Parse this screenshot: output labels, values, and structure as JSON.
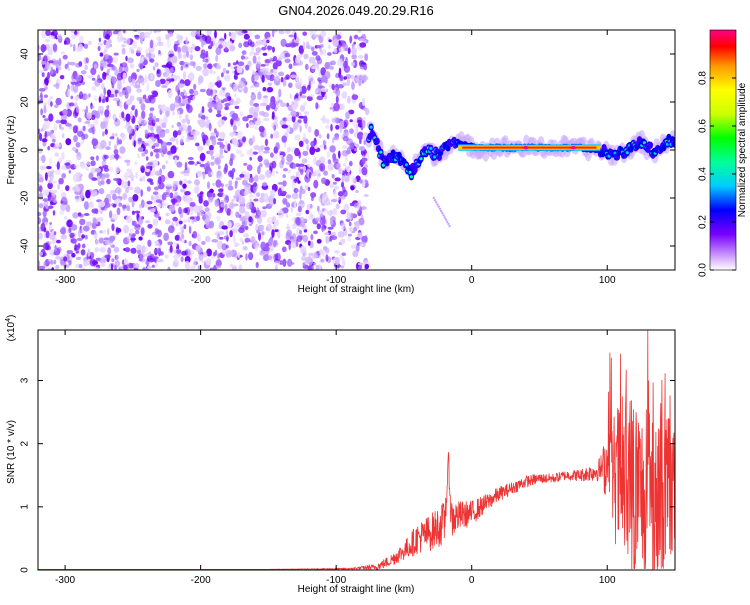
{
  "title": "GN04.2026.049.20.29.R16",
  "chart_data": [
    {
      "type": "heatmap",
      "xlabel": "Height of straight line (km)",
      "ylabel": "Frequency (Hz)",
      "xlim": [
        -320,
        150
      ],
      "ylim": [
        -50,
        50
      ],
      "xticks": [
        -300,
        -200,
        -100,
        0,
        100
      ],
      "yticks": [
        -40,
        -20,
        0,
        20,
        40
      ],
      "xtick_labels": [
        "-300",
        "-200",
        "-100",
        "0",
        "100"
      ],
      "ytick_labels": [
        "-40",
        "-20",
        "0",
        "20",
        "40"
      ],
      "noise_region_x": [
        -320,
        -77
      ],
      "signal": {
        "band_x": [
          -10,
          95
        ],
        "band_freq": 1,
        "feature_x": [
          -75,
          -65,
          -55,
          -45,
          -35,
          -25,
          -15,
          -5,
          5,
          20,
          40,
          60,
          80,
          95,
          105,
          115,
          125,
          135,
          145
        ],
        "feature_f": [
          10,
          -5,
          -2,
          -10,
          0,
          -2,
          3,
          2,
          1,
          1,
          1,
          1,
          1,
          0,
          -2,
          0,
          3,
          -1,
          4
        ]
      },
      "colorbar": {
        "label": "Normalized spectral amplitude",
        "range": [
          0,
          1
        ],
        "ticks": [
          0.0,
          0.2,
          0.4,
          0.6,
          0.8
        ],
        "tick_labels": [
          "0.0",
          "0.2",
          "0.4",
          "0.6",
          "0.8"
        ],
        "colors": [
          "#ffffff",
          "#cc99ff",
          "#7700ff",
          "#0000ff",
          "#00ccff",
          "#00ff99",
          "#00ff00",
          "#ccff00",
          "#ffff00",
          "#ff9900",
          "#ff0000",
          "#ff0088"
        ]
      }
    },
    {
      "type": "line",
      "xlabel": "Height of straight line (km)",
      "ylabel": "SNR (10 * v/v)",
      "y_multiplier": "(x10",
      "y_multiplier_exp": "4",
      "y_multiplier_close": ")",
      "xlim": [
        -320,
        150
      ],
      "ylim": [
        0,
        3.8
      ],
      "xticks": [
        -300,
        -200,
        -100,
        0,
        100
      ],
      "yticks": [
        0,
        1,
        2,
        3
      ],
      "xtick_labels": [
        "-300",
        "-200",
        "-100",
        "0",
        "100"
      ],
      "ytick_labels": [
        "0",
        "1",
        "2",
        "3"
      ],
      "color": "#ee3333",
      "x": [
        -320,
        -250,
        -150,
        -90,
        -70,
        -60,
        -50,
        -40,
        -30,
        -20,
        -17,
        -15,
        -10,
        0,
        10,
        20,
        30,
        40,
        50,
        60,
        70,
        80,
        90,
        95,
        100,
        105,
        110,
        115,
        120,
        125,
        130,
        135,
        140,
        145,
        150
      ],
      "y": [
        0.01,
        0.01,
        0.01,
        0.02,
        0.05,
        0.15,
        0.3,
        0.5,
        0.6,
        0.75,
        1.7,
        0.8,
        0.85,
        0.9,
        1.05,
        1.2,
        1.3,
        1.4,
        1.45,
        1.45,
        1.5,
        1.5,
        1.55,
        1.6,
        1.65,
        1.5,
        1.4,
        1.3,
        1.35,
        1.2,
        1.3,
        1.2,
        1.3,
        1.1,
        1.2
      ],
      "spread": [
        0.0,
        0.0,
        0.0,
        0.01,
        0.05,
        0.1,
        0.15,
        0.25,
        0.3,
        0.35,
        0.2,
        0.35,
        0.25,
        0.2,
        0.15,
        0.12,
        0.1,
        0.1,
        0.08,
        0.08,
        0.08,
        0.1,
        0.15,
        0.2,
        0.6,
        1.0,
        1.4,
        1.6,
        1.5,
        1.4,
        1.3,
        1.4,
        1.5,
        1.2,
        1.0
      ]
    }
  ]
}
